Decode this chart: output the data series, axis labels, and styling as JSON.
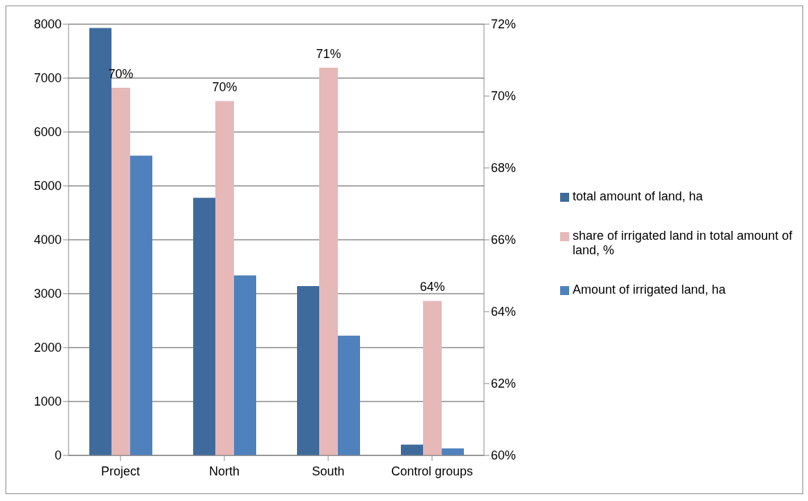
{
  "chart_data": {
    "type": "bar",
    "categories": [
      "Project",
      "North",
      "South",
      "Control groups"
    ],
    "series": [
      {
        "name": "total amount of land, ha",
        "color": "#3f6a9c",
        "values": [
          7930,
          4780,
          3140,
          200
        ]
      },
      {
        "name": "share of irrigated land in total amount of land, %",
        "color": "#e6b8b7",
        "axis": "y2",
        "values": [
          70.23,
          69.86,
          70.79,
          64.3
        ],
        "value_labels": [
          "70%",
          "70%",
          "71%",
          "64%"
        ]
      },
      {
        "name": "Amount of irrigated land, ha",
        "color": "#4f81bd",
        "values": [
          5560,
          3340,
          2220,
          130
        ]
      }
    ],
    "ylim": [
      0,
      8000
    ],
    "yticks": [
      0,
      1000,
      2000,
      3000,
      4000,
      5000,
      6000,
      7000,
      8000
    ],
    "y2lim": [
      60,
      72
    ],
    "y2ticks": [
      {
        "value": 60,
        "label": "60%"
      },
      {
        "value": 62,
        "label": "62%"
      },
      {
        "value": 64,
        "label": "64%"
      },
      {
        "value": 66,
        "label": "66%"
      },
      {
        "value": 68,
        "label": "68%"
      },
      {
        "value": 70,
        "label": "70%"
      },
      {
        "value": 72,
        "label": "72%"
      }
    ],
    "grid": "y",
    "legend": "right"
  }
}
